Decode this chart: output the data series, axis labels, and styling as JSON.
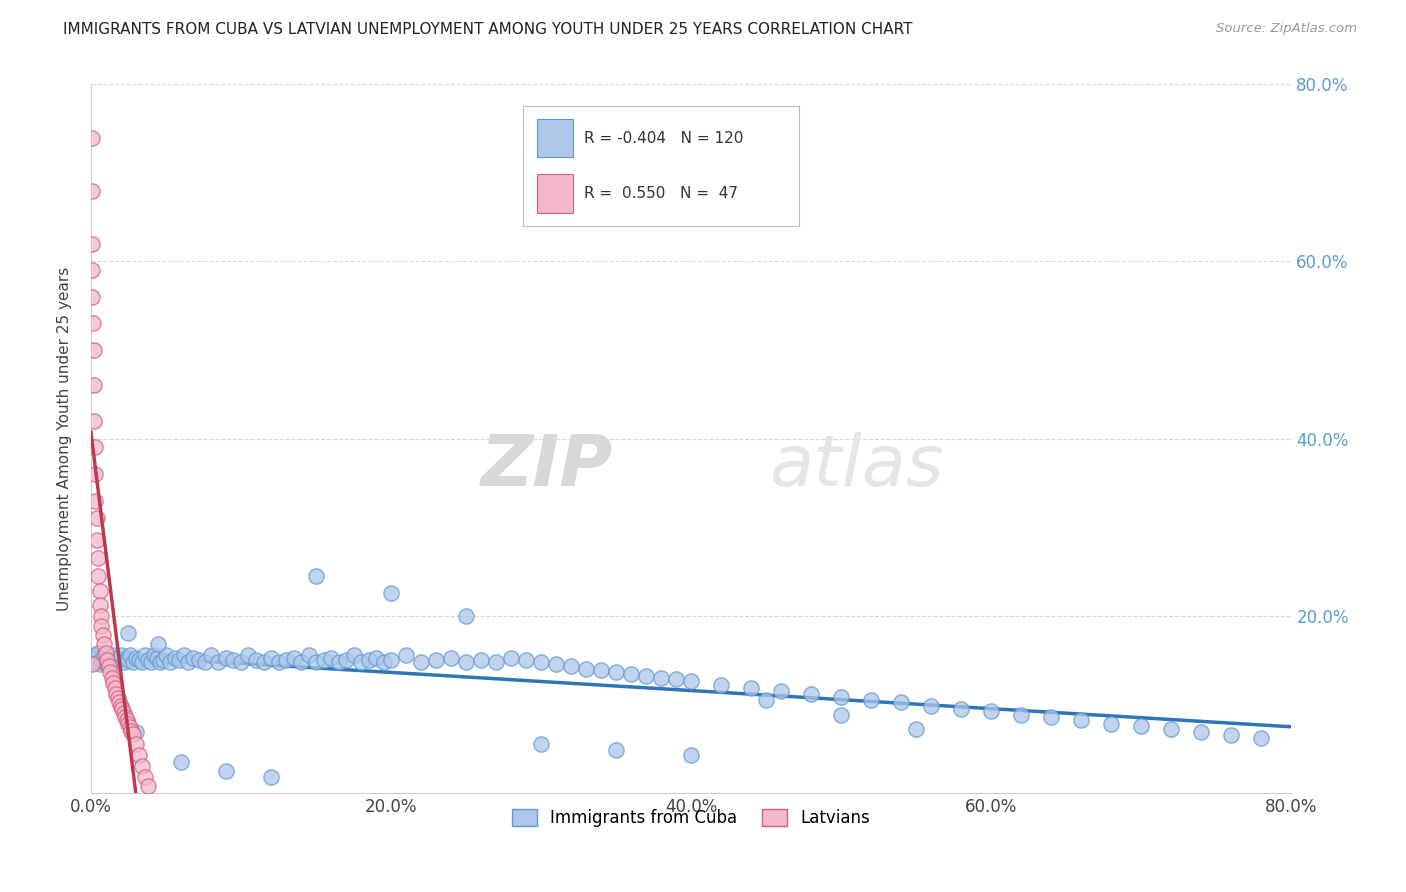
{
  "title": "IMMIGRANTS FROM CUBA VS LATVIAN UNEMPLOYMENT AMONG YOUTH UNDER 25 YEARS CORRELATION CHART",
  "source": "Source: ZipAtlas.com",
  "ylabel": "Unemployment Among Youth under 25 years",
  "xlim": [
    0.0,
    0.8
  ],
  "ylim": [
    0.0,
    0.8
  ],
  "xtick_labels": [
    "0.0%",
    "20.0%",
    "40.0%",
    "60.0%",
    "80.0%"
  ],
  "xtick_vals": [
    0.0,
    0.2,
    0.4,
    0.6,
    0.8
  ],
  "ytick_labels": [
    "20.0%",
    "40.0%",
    "60.0%",
    "80.0%"
  ],
  "ytick_vals": [
    0.2,
    0.4,
    0.6,
    0.8
  ],
  "series1_color": "#aec6e8",
  "series1_edge": "#5b9bd5",
  "series2_color": "#f4b8cc",
  "series2_edge": "#d4607a",
  "trend1_color": "#2e75b6",
  "trend2_color": "#c0384f",
  "legend_r1": "-0.404",
  "legend_n1": "120",
  "legend_r2": "0.550",
  "legend_n2": "47",
  "legend_label1": "Immigrants from Cuba",
  "legend_label2": "Latvians",
  "watermark_zip": "ZIP",
  "watermark_atlas": "atlas",
  "blue_scatter_x": [
    0.002,
    0.003,
    0.004,
    0.005,
    0.006,
    0.007,
    0.008,
    0.009,
    0.01,
    0.011,
    0.012,
    0.013,
    0.015,
    0.016,
    0.017,
    0.018,
    0.02,
    0.022,
    0.024,
    0.025,
    0.026,
    0.028,
    0.03,
    0.032,
    0.034,
    0.036,
    0.038,
    0.04,
    0.042,
    0.044,
    0.046,
    0.048,
    0.05,
    0.053,
    0.056,
    0.059,
    0.062,
    0.065,
    0.068,
    0.072,
    0.076,
    0.08,
    0.085,
    0.09,
    0.095,
    0.1,
    0.105,
    0.11,
    0.115,
    0.12,
    0.125,
    0.13,
    0.135,
    0.14,
    0.145,
    0.15,
    0.155,
    0.16,
    0.165,
    0.17,
    0.175,
    0.18,
    0.185,
    0.19,
    0.195,
    0.2,
    0.21,
    0.22,
    0.23,
    0.24,
    0.25,
    0.26,
    0.27,
    0.28,
    0.29,
    0.3,
    0.31,
    0.32,
    0.33,
    0.34,
    0.35,
    0.36,
    0.37,
    0.38,
    0.39,
    0.4,
    0.42,
    0.44,
    0.46,
    0.48,
    0.5,
    0.52,
    0.54,
    0.56,
    0.58,
    0.6,
    0.62,
    0.64,
    0.66,
    0.68,
    0.7,
    0.72,
    0.74,
    0.76,
    0.78,
    0.3,
    0.35,
    0.4,
    0.15,
    0.2,
    0.25,
    0.45,
    0.5,
    0.55,
    0.03,
    0.06,
    0.09,
    0.12,
    0.025,
    0.045
  ],
  "blue_scatter_y": [
    0.155,
    0.148,
    0.152,
    0.158,
    0.145,
    0.15,
    0.148,
    0.155,
    0.15,
    0.145,
    0.152,
    0.148,
    0.155,
    0.15,
    0.148,
    0.152,
    0.155,
    0.148,
    0.152,
    0.15,
    0.155,
    0.148,
    0.152,
    0.15,
    0.148,
    0.155,
    0.15,
    0.148,
    0.155,
    0.152,
    0.148,
    0.15,
    0.155,
    0.148,
    0.152,
    0.15,
    0.155,
    0.148,
    0.152,
    0.15,
    0.148,
    0.155,
    0.148,
    0.152,
    0.15,
    0.148,
    0.155,
    0.15,
    0.148,
    0.152,
    0.148,
    0.15,
    0.152,
    0.148,
    0.155,
    0.148,
    0.15,
    0.152,
    0.148,
    0.15,
    0.155,
    0.148,
    0.15,
    0.152,
    0.148,
    0.15,
    0.155,
    0.148,
    0.15,
    0.152,
    0.148,
    0.15,
    0.148,
    0.152,
    0.15,
    0.148,
    0.145,
    0.143,
    0.14,
    0.138,
    0.136,
    0.134,
    0.132,
    0.13,
    0.128,
    0.126,
    0.122,
    0.118,
    0.115,
    0.112,
    0.108,
    0.105,
    0.102,
    0.098,
    0.095,
    0.092,
    0.088,
    0.085,
    0.082,
    0.078,
    0.075,
    0.072,
    0.068,
    0.065,
    0.062,
    0.055,
    0.048,
    0.042,
    0.245,
    0.225,
    0.2,
    0.105,
    0.088,
    0.072,
    0.068,
    0.035,
    0.025,
    0.018,
    0.18,
    0.168
  ],
  "pink_scatter_x": [
    0.0005,
    0.0008,
    0.001,
    0.001,
    0.001,
    0.001,
    0.0015,
    0.002,
    0.002,
    0.002,
    0.003,
    0.003,
    0.003,
    0.004,
    0.004,
    0.005,
    0.005,
    0.006,
    0.006,
    0.007,
    0.007,
    0.008,
    0.009,
    0.01,
    0.011,
    0.012,
    0.013,
    0.014,
    0.015,
    0.016,
    0.017,
    0.018,
    0.019,
    0.02,
    0.021,
    0.022,
    0.023,
    0.024,
    0.025,
    0.026,
    0.027,
    0.028,
    0.03,
    0.032,
    0.034,
    0.036,
    0.038
  ],
  "pink_scatter_y": [
    0.74,
    0.68,
    0.62,
    0.59,
    0.56,
    0.145,
    0.53,
    0.5,
    0.46,
    0.42,
    0.39,
    0.36,
    0.33,
    0.31,
    0.285,
    0.265,
    0.245,
    0.228,
    0.212,
    0.2,
    0.188,
    0.178,
    0.168,
    0.158,
    0.15,
    0.143,
    0.136,
    0.13,
    0.124,
    0.118,
    0.112,
    0.107,
    0.102,
    0.098,
    0.094,
    0.09,
    0.086,
    0.082,
    0.078,
    0.074,
    0.07,
    0.066,
    0.055,
    0.042,
    0.03,
    0.018,
    0.008
  ],
  "pink_trend_x0": 0.0,
  "pink_trend_x1": 0.038,
  "pink_trend_dash_x1": 0.22,
  "blue_trend_y_at_0": 0.155,
  "blue_trend_y_at_08": 0.045
}
